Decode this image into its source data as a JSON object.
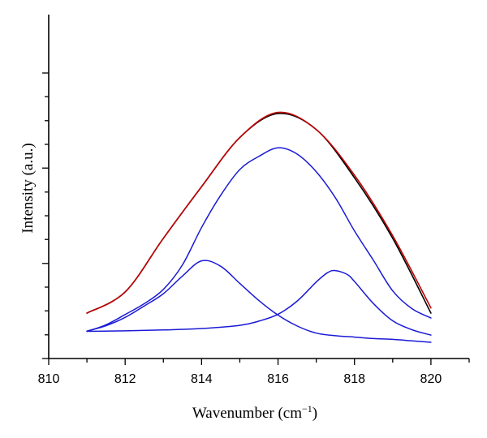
{
  "chart_data": {
    "type": "line",
    "xlabel_main": "Wavenumber (cm",
    "xlabel_sup": "−1",
    "xlabel_close": ")",
    "ylabel": "Intensity (a.u.)",
    "xlim": [
      810,
      821
    ],
    "ylim": [
      0,
      1
    ],
    "x_ticks": [
      "810",
      "812",
      "814",
      "816",
      "818",
      "820"
    ],
    "x_tick_values": [
      810,
      812,
      814,
      816,
      818,
      820
    ],
    "x_minor_tick_values": [
      811,
      813,
      815,
      817,
      819,
      821
    ],
    "y_major_tick_values": [
      0,
      0.333,
      0.667,
      1.0
    ],
    "y_minor_tick_values": [
      0.083,
      0.167,
      0.25,
      0.417,
      0.5,
      0.583,
      0.75,
      0.833,
      0.917
    ],
    "series": [
      {
        "color": "#000000",
        "x": [
          811,
          812,
          813,
          814,
          815,
          816,
          817,
          818,
          819,
          820
        ],
        "y": [
          0.159,
          0.233,
          0.421,
          0.602,
          0.774,
          0.858,
          0.802,
          0.633,
          0.421,
          0.159
        ]
      },
      {
        "color": "#c00000",
        "x": [
          811,
          812,
          813,
          814,
          815,
          816,
          817,
          818,
          819,
          820
        ],
        "y": [
          0.159,
          0.233,
          0.421,
          0.602,
          0.774,
          0.862,
          0.802,
          0.642,
          0.43,
          0.177
        ]
      },
      {
        "color": "#1a1ad6",
        "x": [
          811,
          811.5,
          812,
          812.5,
          813,
          813.5,
          814,
          814.5,
          815,
          815.5,
          816,
          816.5,
          817,
          817.5,
          818,
          818.5,
          819,
          819.5,
          820
        ],
        "y": [
          0.095,
          0.118,
          0.154,
          0.192,
          0.242,
          0.328,
          0.459,
          0.572,
          0.662,
          0.708,
          0.738,
          0.716,
          0.654,
          0.563,
          0.447,
          0.343,
          0.237,
          0.175,
          0.142
        ]
      },
      {
        "color": "#1a1ad6",
        "x": [
          811,
          811.5,
          812,
          812.5,
          813,
          813.5,
          814,
          814.5,
          815,
          815.5,
          816,
          816.5,
          817,
          817.5,
          818,
          818.5,
          819,
          819.5,
          820
        ],
        "y": [
          0.096,
          0.115,
          0.144,
          0.184,
          0.227,
          0.289,
          0.342,
          0.323,
          0.263,
          0.203,
          0.152,
          0.114,
          0.089,
          0.08,
          0.075,
          0.07,
          0.067,
          0.062,
          0.057
        ]
      },
      {
        "color": "#1a1ad6",
        "x": [
          811,
          812,
          813,
          814,
          815,
          815.5,
          816,
          816.5,
          817,
          817.3,
          817.5,
          817.8,
          818,
          818.5,
          819,
          819.5,
          820
        ],
        "y": [
          0.095,
          0.097,
          0.1,
          0.105,
          0.116,
          0.131,
          0.155,
          0.201,
          0.268,
          0.301,
          0.308,
          0.295,
          0.27,
          0.192,
          0.132,
          0.101,
          0.082
        ]
      }
    ]
  }
}
